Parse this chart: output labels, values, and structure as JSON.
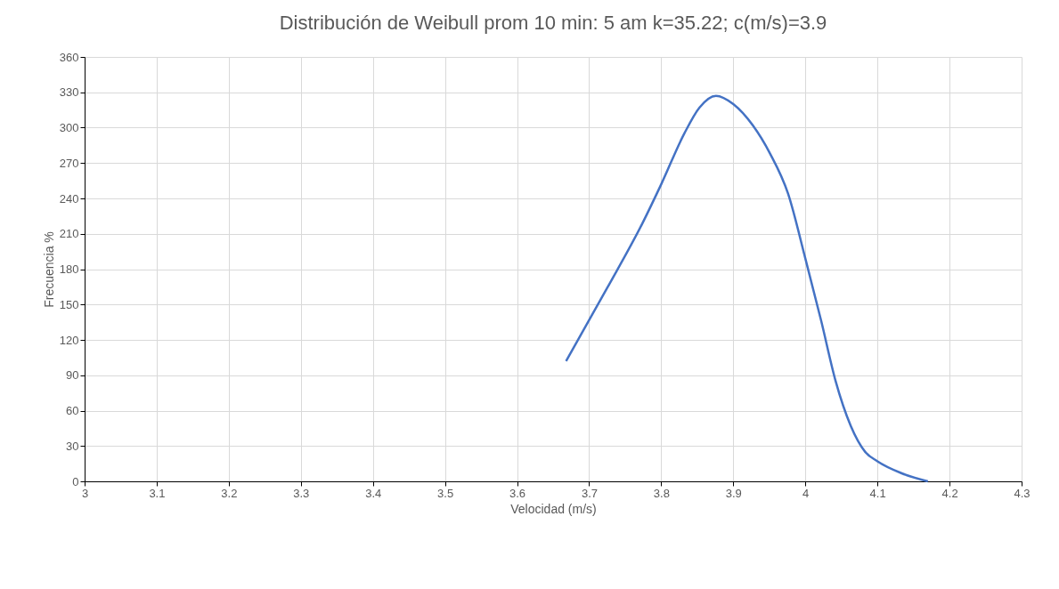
{
  "chart_data": {
    "type": "line",
    "title": "Distribución de Weibull prom 10 min: 5 am          k=35.22; c(m/s)=3.9",
    "xlabel": "Velocidad (m/s)",
    "ylabel": "Frecuencia %",
    "x": [
      3.668,
      3.725,
      3.774,
      3.8,
      3.832,
      3.853,
      3.876,
      3.9,
      3.927,
      3.951,
      3.976,
      4.0,
      4.022,
      4.042,
      4.063,
      4.083,
      4.1,
      4.133,
      4.17
    ],
    "series": [
      {
        "color": "#4472c4",
        "values": [
          102,
          164,
          219,
          252,
          295,
          317,
          327,
          320,
          302,
          278,
          244,
          189,
          136,
          85,
          47,
          25,
          17,
          7,
          0
        ]
      }
    ],
    "xlim": [
      3,
      4.3
    ],
    "xticks": [
      3,
      3.1,
      3.2,
      3.3,
      3.4,
      3.5,
      3.6,
      3.7,
      3.8,
      3.9,
      4,
      4.1,
      4.2,
      4.3
    ],
    "ylim": [
      0,
      360
    ],
    "yticks": [
      0,
      30,
      60,
      90,
      120,
      150,
      180,
      210,
      240,
      270,
      300,
      330,
      360
    ],
    "grid": true,
    "marker": "none",
    "line_style": "solid",
    "legend": false
  }
}
